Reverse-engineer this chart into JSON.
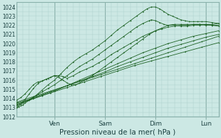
{
  "xlabel": "Pression niveau de la mer( hPa )",
  "bg_color": "#cce8e4",
  "grid_minor_color": "#aaccc8",
  "grid_major_color": "#88b0aa",
  "line_color": "#1a6020",
  "ylim": [
    1012,
    1024.5
  ],
  "xlim": [
    0,
    96
  ],
  "yticks": [
    1012,
    1013,
    1014,
    1015,
    1016,
    1017,
    1018,
    1019,
    1020,
    1021,
    1022,
    1023,
    1024
  ],
  "day_ticks": [
    18,
    42,
    66,
    90
  ],
  "day_labels": [
    "Ven",
    "Sam",
    "Dim",
    "Lun"
  ],
  "series": [
    {
      "x": [
        0,
        1,
        2,
        3,
        4,
        6,
        8,
        10,
        12,
        15,
        18,
        21,
        24,
        27,
        30,
        33,
        36,
        39,
        42,
        45,
        48,
        51,
        54,
        57,
        60,
        62,
        64,
        66,
        68,
        70,
        72,
        74,
        76,
        78,
        80,
        82,
        84,
        86,
        88,
        90,
        93,
        96
      ],
      "y": [
        1013.0,
        1013.1,
        1013.2,
        1013.3,
        1013.5,
        1013.8,
        1014.1,
        1014.5,
        1014.9,
        1015.5,
        1016.0,
        1016.7,
        1017.4,
        1018.0,
        1018.5,
        1018.9,
        1019.3,
        1019.8,
        1020.3,
        1020.9,
        1021.5,
        1022.0,
        1022.5,
        1023.0,
        1023.5,
        1023.8,
        1024.0,
        1024.0,
        1023.8,
        1023.5,
        1023.2,
        1023.0,
        1022.8,
        1022.6,
        1022.5,
        1022.4,
        1022.4,
        1022.4,
        1022.4,
        1022.4,
        1022.3,
        1022.2
      ]
    },
    {
      "x": [
        0,
        3,
        6,
        9,
        12,
        15,
        18,
        21,
        24,
        27,
        30,
        33,
        36,
        39,
        42,
        45,
        48,
        51,
        54,
        57,
        60,
        63,
        64,
        66,
        68,
        70,
        72,
        75,
        78,
        81,
        84,
        87,
        90,
        93,
        96
      ],
      "y": [
        1013.2,
        1013.5,
        1013.9,
        1014.3,
        1014.7,
        1015.1,
        1015.5,
        1016.0,
        1016.5,
        1017.0,
        1017.5,
        1017.9,
        1018.3,
        1018.8,
        1019.3,
        1019.8,
        1020.3,
        1020.8,
        1021.3,
        1021.8,
        1022.2,
        1022.5,
        1022.6,
        1022.5,
        1022.3,
        1022.1,
        1022.0,
        1022.0,
        1021.9,
        1021.9,
        1022.0,
        1022.0,
        1022.1,
        1022.1,
        1022.2
      ]
    },
    {
      "x": [
        0,
        6,
        12,
        18,
        24,
        30,
        36,
        42,
        48,
        54,
        60,
        66,
        72,
        78,
        84,
        90,
        96
      ],
      "y": [
        1013.3,
        1013.8,
        1014.3,
        1014.8,
        1015.4,
        1016.0,
        1016.6,
        1017.2,
        1017.8,
        1018.4,
        1019.0,
        1019.5,
        1020.0,
        1020.4,
        1020.8,
        1021.1,
        1021.4
      ]
    },
    {
      "x": [
        0,
        6,
        12,
        18,
        24,
        30,
        36,
        42,
        48,
        54,
        60,
        66,
        72,
        78,
        84,
        90,
        96
      ],
      "y": [
        1013.5,
        1013.9,
        1014.4,
        1014.9,
        1015.4,
        1015.9,
        1016.4,
        1016.9,
        1017.5,
        1018.0,
        1018.5,
        1019.0,
        1019.5,
        1019.9,
        1020.3,
        1020.7,
        1021.0
      ]
    },
    {
      "x": [
        0,
        8,
        16,
        24,
        32,
        40,
        48,
        56,
        64,
        72,
        80,
        88,
        96
      ],
      "y": [
        1013.6,
        1014.2,
        1014.8,
        1015.4,
        1016.0,
        1016.6,
        1017.2,
        1017.8,
        1018.4,
        1019.0,
        1019.6,
        1020.2,
        1020.8
      ]
    },
    {
      "x": [
        0,
        8,
        16,
        24,
        32,
        40,
        48,
        56,
        64,
        72,
        80,
        88,
        96
      ],
      "y": [
        1013.4,
        1014.0,
        1014.6,
        1015.2,
        1015.8,
        1016.4,
        1017.0,
        1017.6,
        1018.1,
        1018.6,
        1019.1,
        1019.6,
        1020.1
      ]
    },
    {
      "x": [
        0,
        2,
        4,
        6,
        8,
        10,
        12,
        14,
        16,
        18,
        20,
        22,
        24,
        27,
        30,
        33,
        36,
        39,
        42,
        45,
        48,
        51,
        54,
        57,
        60,
        63,
        66,
        69,
        72,
        75,
        78,
        81,
        84,
        87,
        90,
        93,
        96
      ],
      "y": [
        1013.8,
        1014.1,
        1014.5,
        1015.0,
        1015.5,
        1015.8,
        1015.9,
        1016.1,
        1016.3,
        1016.5,
        1016.5,
        1016.4,
        1016.2,
        1016.5,
        1016.9,
        1017.2,
        1017.5,
        1017.9,
        1018.3,
        1018.8,
        1019.2,
        1019.6,
        1020.0,
        1020.4,
        1020.8,
        1021.1,
        1021.4,
        1021.6,
        1021.8,
        1021.9,
        1022.0,
        1022.0,
        1022.1,
        1022.1,
        1022.1,
        1022.0,
        1022.0
      ]
    },
    {
      "x": [
        0,
        2,
        4,
        6,
        8,
        10,
        12,
        15,
        18,
        20,
        22,
        24,
        26,
        28,
        30,
        33,
        36,
        39,
        42,
        45,
        48,
        51,
        54,
        57,
        60,
        63,
        66,
        69,
        72,
        75,
        78,
        81,
        84,
        87,
        90,
        93,
        96
      ],
      "y": [
        1013.0,
        1013.4,
        1013.9,
        1014.5,
        1015.1,
        1015.6,
        1015.9,
        1016.2,
        1016.5,
        1016.3,
        1016.0,
        1015.7,
        1015.5,
        1015.5,
        1015.7,
        1016.1,
        1016.5,
        1017.0,
        1017.5,
        1018.0,
        1018.5,
        1019.0,
        1019.5,
        1020.0,
        1020.5,
        1021.0,
        1021.4,
        1021.7,
        1022.0,
        1022.1,
        1022.1,
        1022.1,
        1022.1,
        1022.1,
        1022.0,
        1022.0,
        1021.9
      ]
    }
  ]
}
